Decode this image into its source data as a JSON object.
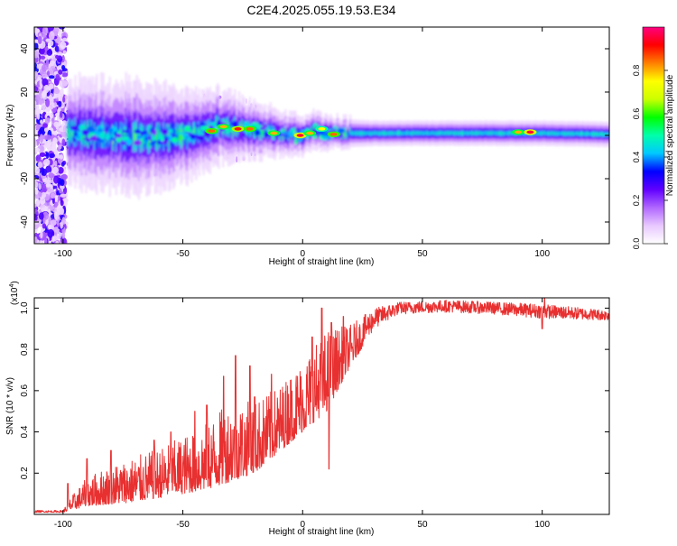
{
  "title": "C2E4.2025.055.19.53.E34",
  "chart_data": [
    {
      "type": "heatmap",
      "xlabel": "Height of straight line (km)",
      "ylabel": "Frequency (Hz)",
      "xlim": [
        -112,
        128
      ],
      "ylim": [
        -50,
        50
      ],
      "x_ticks": [
        -100,
        -50,
        0,
        50,
        100
      ],
      "x_tick_labels": [
        "-100",
        "-50",
        "0",
        "50",
        "100"
      ],
      "y_ticks": [
        -40,
        -20,
        0,
        20,
        40
      ],
      "y_tick_labels": [
        "-40",
        "-20",
        "0",
        "20",
        "40"
      ],
      "colorbar": {
        "label": "Normalized spectral amplitude",
        "range": [
          0,
          1
        ],
        "ticks": [
          0.0,
          0.2,
          0.4,
          0.6,
          0.8
        ],
        "tick_labels": [
          "0.0",
          "0.2",
          "0.4",
          "0.6",
          "0.8"
        ],
        "colors": [
          "#ffffff",
          "#e8c8ff",
          "#b066ff",
          "#6000ff",
          "#0000ff",
          "#00c8ff",
          "#00ffaa",
          "#00ff00",
          "#ccff00",
          "#ffff00",
          "#ff8000",
          "#ff0000",
          "#ff0080"
        ]
      },
      "features": {
        "noise_region_x": [
          -112,
          -99
        ],
        "band_center_hz": [
          {
            "x": -98,
            "f": 1.5
          },
          {
            "x": -80,
            "f": 0
          },
          {
            "x": -60,
            "f": -1
          },
          {
            "x": -45,
            "f": 1
          },
          {
            "x": -35,
            "f": 4
          },
          {
            "x": -25,
            "f": 3
          },
          {
            "x": -15,
            "f": 2
          },
          {
            "x": -5,
            "f": 0
          },
          {
            "x": 0,
            "f": 0
          },
          {
            "x": 5,
            "f": 2
          },
          {
            "x": 15,
            "f": 1
          },
          {
            "x": 50,
            "f": 1
          },
          {
            "x": 100,
            "f": 1
          },
          {
            "x": 128,
            "f": 0.5
          }
        ],
        "band_halfwidth_hz": [
          {
            "x": -98,
            "w": 9
          },
          {
            "x": -70,
            "w": 10
          },
          {
            "x": -50,
            "w": 8
          },
          {
            "x": -30,
            "w": 6
          },
          {
            "x": -10,
            "w": 4
          },
          {
            "x": 10,
            "w": 3
          },
          {
            "x": 30,
            "w": 2.5
          },
          {
            "x": 128,
            "w": 2.5
          }
        ],
        "hotspots": [
          {
            "x": -38,
            "f": 2,
            "a": 0.85
          },
          {
            "x": -33,
            "f": 4,
            "a": 0.8
          },
          {
            "x": -27,
            "f": 3,
            "a": 0.9
          },
          {
            "x": -22,
            "f": 3,
            "a": 0.85
          },
          {
            "x": -12,
            "f": 1,
            "a": 0.8
          },
          {
            "x": -1,
            "f": 0,
            "a": 0.95
          },
          {
            "x": 3,
            "f": 1,
            "a": 0.8
          },
          {
            "x": 8,
            "f": 3,
            "a": 0.75
          },
          {
            "x": 13,
            "f": 0.5,
            "a": 0.85
          },
          {
            "x": 90,
            "f": 1.5,
            "a": 0.8
          },
          {
            "x": 95,
            "f": 1.5,
            "a": 0.95
          }
        ]
      }
    },
    {
      "type": "line",
      "xlabel": "Height of straight line (km)",
      "ylabel": "SNR (10 * v/v)",
      "multiplier_label": "(x10",
      "multiplier_exponent": "4",
      "multiplier_close": ")",
      "xlim": [
        -112,
        128
      ],
      "ylim": [
        0,
        1.05
      ],
      "x_ticks": [
        -100,
        -50,
        0,
        50,
        100
      ],
      "x_tick_labels": [
        "-100",
        "-50",
        "0",
        "50",
        "100"
      ],
      "y_ticks": [
        0.2,
        0.4,
        0.6,
        0.8,
        1.0
      ],
      "y_tick_labels": [
        "0.2",
        "0.4",
        "0.6",
        "0.8",
        "1.0"
      ],
      "series": [
        {
          "color": "#e83030",
          "envelope": [
            {
              "x": -112,
              "lo": 0.01,
              "hi": 0.02
            },
            {
              "x": -100,
              "lo": 0.01,
              "hi": 0.02
            },
            {
              "x": -97,
              "lo": 0.02,
              "hi": 0.08
            },
            {
              "x": -90,
              "lo": 0.04,
              "hi": 0.18
            },
            {
              "x": -80,
              "lo": 0.05,
              "hi": 0.24
            },
            {
              "x": -70,
              "lo": 0.06,
              "hi": 0.28
            },
            {
              "x": -60,
              "lo": 0.08,
              "hi": 0.32
            },
            {
              "x": -50,
              "lo": 0.1,
              "hi": 0.38
            },
            {
              "x": -40,
              "lo": 0.12,
              "hi": 0.45
            },
            {
              "x": -30,
              "lo": 0.16,
              "hi": 0.55
            },
            {
              "x": -20,
              "lo": 0.2,
              "hi": 0.55
            },
            {
              "x": -10,
              "lo": 0.3,
              "hi": 0.62
            },
            {
              "x": 0,
              "lo": 0.4,
              "hi": 0.75
            },
            {
              "x": 10,
              "lo": 0.5,
              "hi": 0.9
            },
            {
              "x": 20,
              "lo": 0.72,
              "hi": 0.92
            },
            {
              "x": 30,
              "lo": 0.9,
              "hi": 1.0
            },
            {
              "x": 40,
              "lo": 0.97,
              "hi": 1.03
            },
            {
              "x": 60,
              "lo": 0.98,
              "hi": 1.04
            },
            {
              "x": 80,
              "lo": 0.97,
              "hi": 1.03
            },
            {
              "x": 100,
              "lo": 0.95,
              "hi": 1.02
            },
            {
              "x": 128,
              "lo": 0.94,
              "hi": 0.99
            }
          ],
          "spikes": [
            {
              "x": -98,
              "y": 0.15
            },
            {
              "x": -90,
              "y": 0.27
            },
            {
              "x": -80,
              "y": 0.31
            },
            {
              "x": -62,
              "y": 0.36
            },
            {
              "x": -55,
              "y": 0.4
            },
            {
              "x": -45,
              "y": 0.5
            },
            {
              "x": -40,
              "y": 0.53
            },
            {
              "x": -33,
              "y": 0.67
            },
            {
              "x": -28,
              "y": 0.77
            },
            {
              "x": -22,
              "y": 0.72
            },
            {
              "x": -20,
              "y": 0.57
            },
            {
              "x": -13,
              "y": 0.68
            },
            {
              "x": -5,
              "y": 0.65
            },
            {
              "x": 4,
              "y": 0.86
            },
            {
              "x": 8,
              "y": 1.0
            },
            {
              "x": 11,
              "y": 0.22
            },
            {
              "x": 12,
              "y": 0.93
            },
            {
              "x": 17,
              "y": 0.96
            },
            {
              "x": 100,
              "y": 0.9
            },
            {
              "x": 101,
              "y": 1.05
            }
          ]
        }
      ]
    }
  ]
}
